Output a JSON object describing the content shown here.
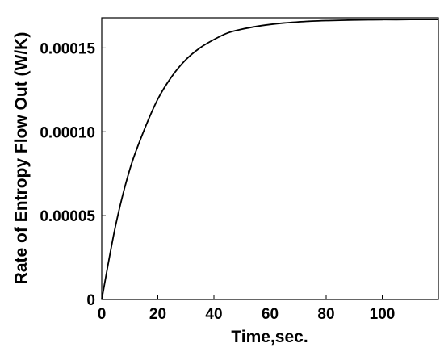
{
  "chart_data": {
    "type": "line",
    "title": "",
    "xlabel": "Time,sec.",
    "ylabel": "Rate of Entropy Flow Out (W/K)",
    "xlim": [
      0,
      120
    ],
    "ylim": [
      0,
      0.000168
    ],
    "grid": false,
    "legend": "none",
    "x_ticks": [
      0,
      20,
      40,
      60,
      80,
      100
    ],
    "x_tick_labels": [
      "0",
      "20",
      "40",
      "60",
      "80",
      "100"
    ],
    "y_ticks": [
      0,
      5e-05,
      0.0001,
      0.00015
    ],
    "y_tick_labels": [
      "0",
      "0.00005",
      "0.00010",
      "0.00015"
    ],
    "series": [
      {
        "color": "#000000",
        "x": [
          0,
          5,
          10,
          15,
          20,
          25,
          30,
          35,
          40,
          45,
          50,
          55,
          60,
          65,
          70,
          75,
          80,
          85,
          90,
          95,
          100,
          105,
          110,
          115,
          120
        ],
        "y": [
          0,
          4.45e-05,
          7.75e-05,
          0.0001005,
          0.0001195,
          0.000133,
          0.000143,
          0.00015,
          0.000155,
          0.000159,
          0.0001612,
          0.0001628,
          0.000164,
          0.0001649,
          0.0001655,
          0.000166,
          0.0001663,
          0.0001665,
          0.0001667,
          0.0001668,
          0.0001669,
          0.0001669,
          0.000167,
          0.000167,
          0.000167
        ]
      }
    ]
  }
}
